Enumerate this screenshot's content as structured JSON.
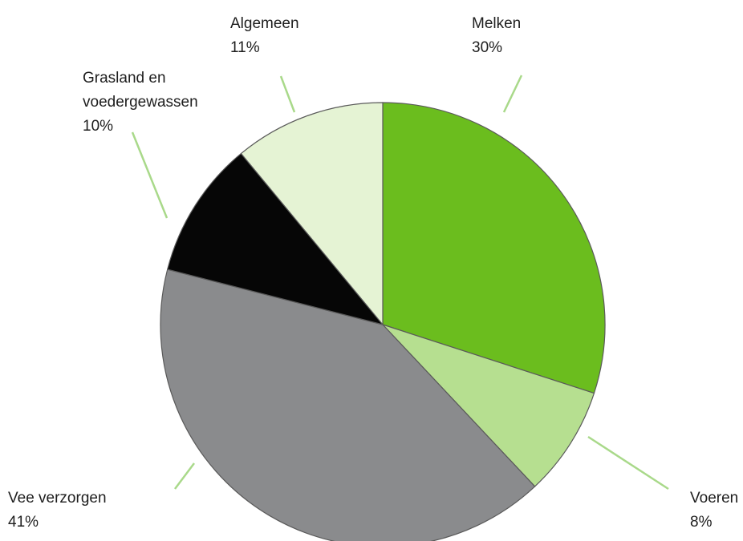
{
  "chart_data": {
    "type": "pie",
    "categories": [
      "Melken",
      "Voeren",
      "Vee verzorgen",
      "Grasland en voedergewassen",
      "Algemeen"
    ],
    "values": [
      30,
      8,
      41,
      10,
      11
    ],
    "value_labels": [
      "30%",
      "8%",
      "41%",
      "10%",
      "11%"
    ],
    "colors": [
      "#6bbd1e",
      "#b6df90",
      "#8a8b8d",
      "#060606",
      "#e5f3d4"
    ]
  }
}
